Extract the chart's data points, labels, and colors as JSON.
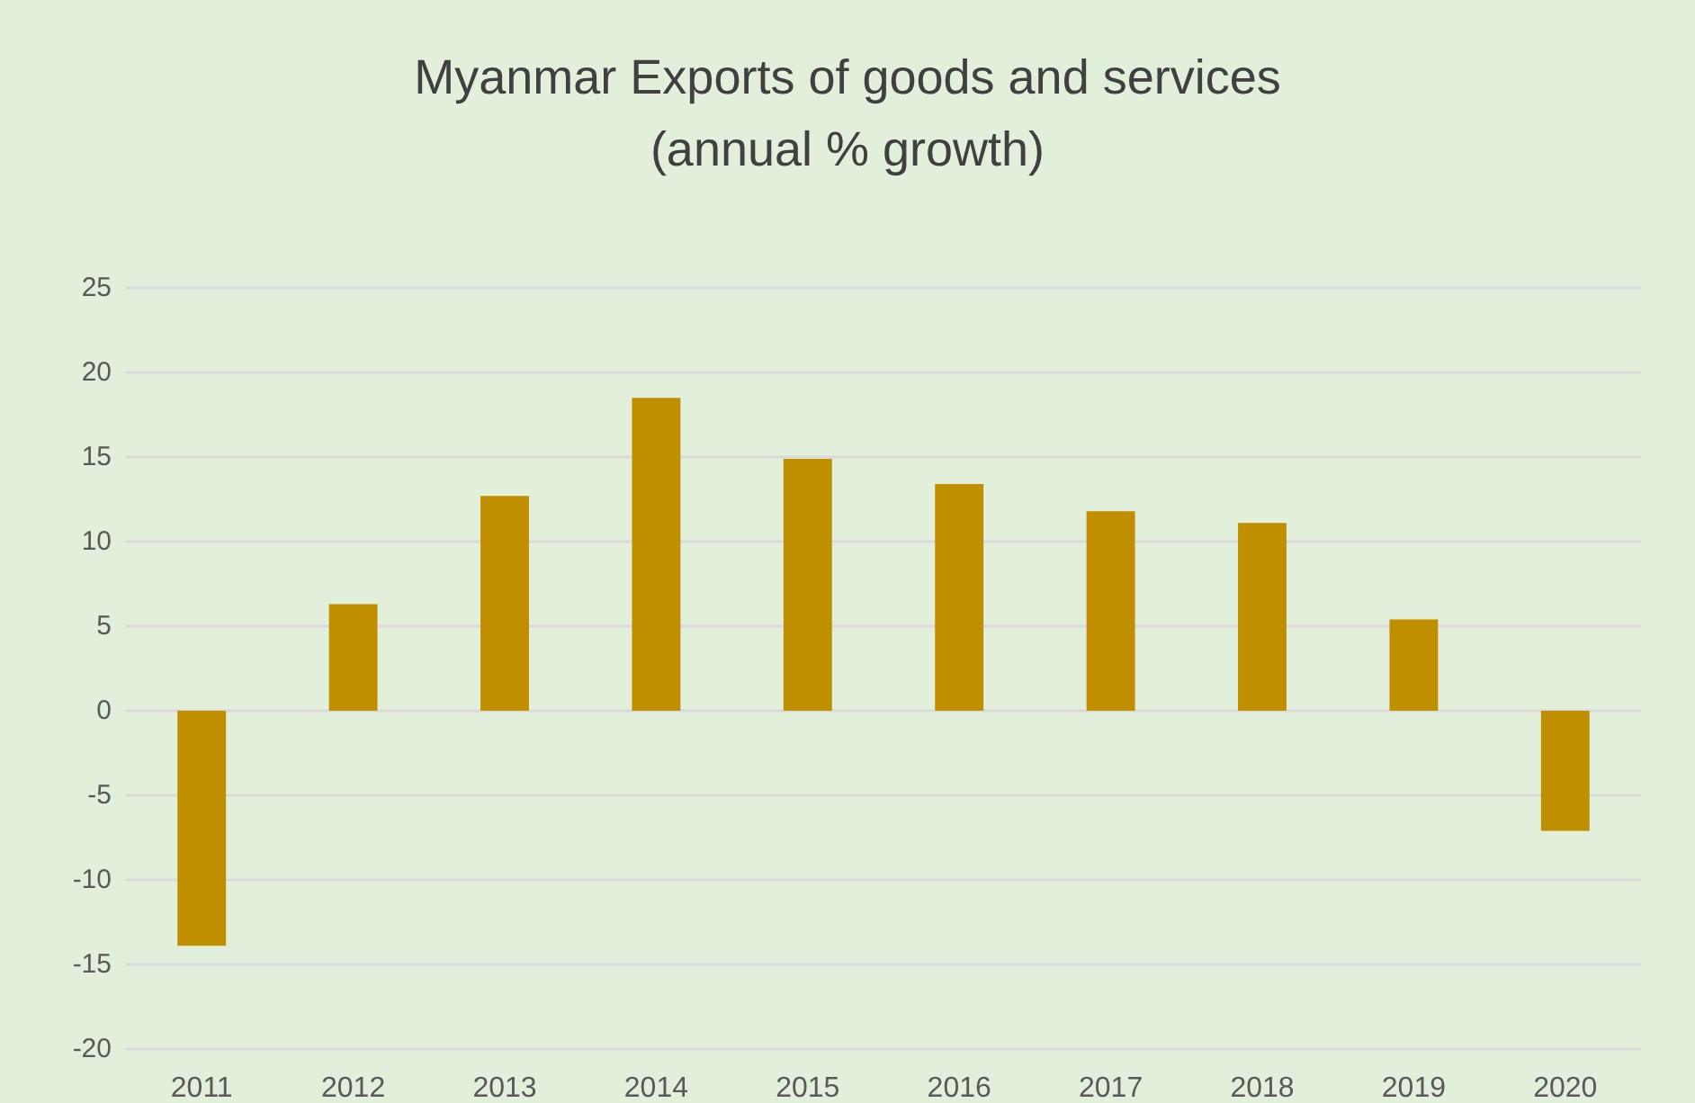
{
  "chart_data": {
    "type": "bar",
    "title": "Myanmar Exports of goods and services\n(annual % growth)",
    "categories": [
      "2011",
      "2012",
      "2013",
      "2014",
      "2015",
      "2016",
      "2017",
      "2018",
      "2019",
      "2020"
    ],
    "values": [
      -13.9,
      6.3,
      12.7,
      18.5,
      14.9,
      13.4,
      11.8,
      11.1,
      5.4,
      -7.1
    ],
    "color": "#bf8f00",
    "ylim": [
      -20,
      25
    ],
    "yticks": [
      -20,
      -15,
      -10,
      -5,
      0,
      5,
      10,
      15,
      20,
      25
    ],
    "grid": "y"
  }
}
